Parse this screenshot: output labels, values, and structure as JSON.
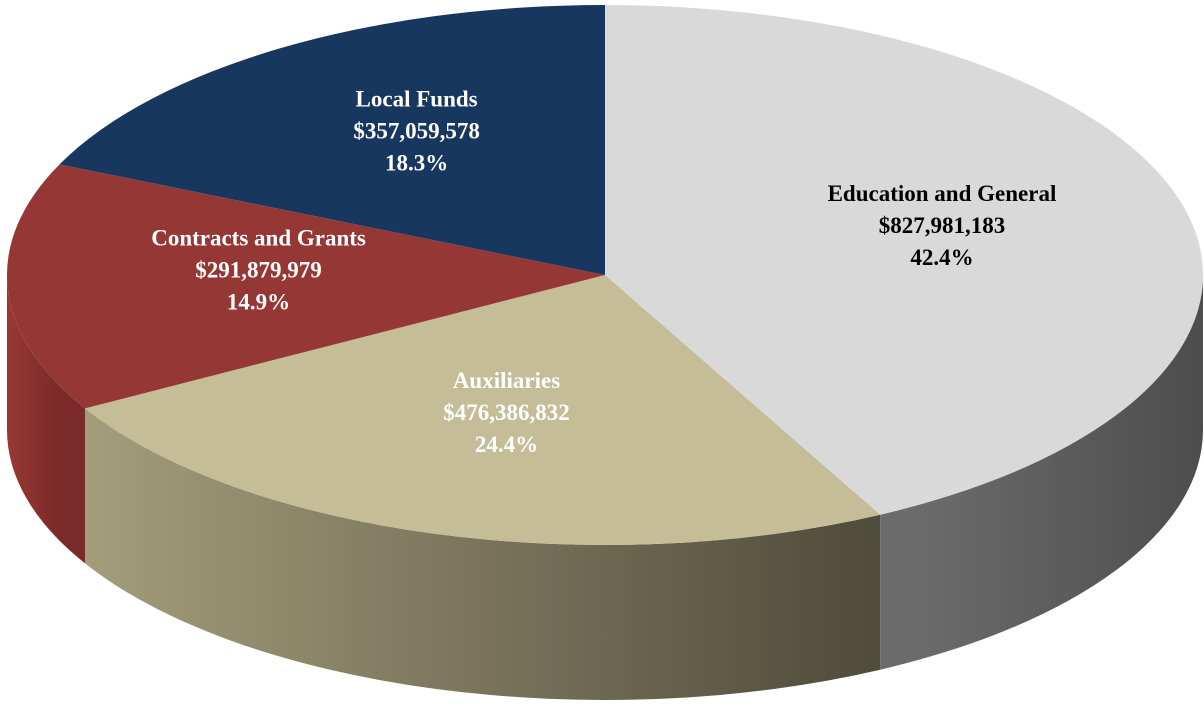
{
  "chart_data": {
    "type": "pie3d",
    "categories": [
      "Education and General",
      "Auxiliaries",
      "Contracts and Grants",
      "Local Funds"
    ],
    "values": [
      827981183,
      476386832,
      291879979,
      357059578
    ],
    "value_labels": [
      "$827,981,183",
      "$476,386,832",
      "$291,879,979",
      "$357,059,578"
    ],
    "percent_labels": [
      "42.4%",
      "24.4%",
      "14.9%",
      "18.3%"
    ],
    "colors": [
      "#d9d9d9",
      "#c4bd97",
      "#953735",
      "#17375e"
    ],
    "label_colors": [
      "#000000",
      "#ffffff",
      "#ffffff",
      "#ffffff"
    ]
  }
}
